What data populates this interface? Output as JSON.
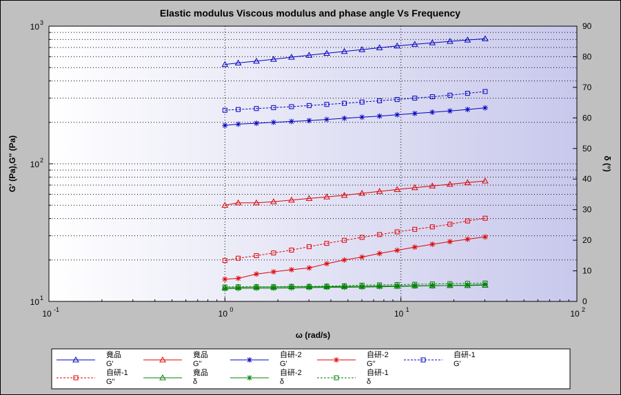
{
  "chart_data": {
    "type": "line",
    "title": "Elastic modulus Viscous modulus and phase angle Vs Frequency",
    "xlabel": "ω (rad/s)",
    "ylabel_left": "G' (Pa),G'' (Pa)",
    "ylabel_right": "δ (°)",
    "x_scale": "log",
    "y_left_scale": "log",
    "xlim": [
      0.1,
      100
    ],
    "ylim_left": [
      10,
      1000
    ],
    "ylim_right": [
      0,
      90
    ],
    "x_ticks": [
      {
        "base": "10",
        "exp": "-1"
      },
      {
        "base": "10",
        "exp": "0"
      },
      {
        "base": "10",
        "exp": "1"
      },
      {
        "base": "10",
        "exp": "2"
      }
    ],
    "y_left_ticks": [
      {
        "base": "10",
        "exp": "1"
      },
      {
        "base": "10",
        "exp": "2"
      },
      {
        "base": "10",
        "exp": "3"
      }
    ],
    "y_right_ticks": [
      "0",
      "10",
      "20",
      "30",
      "40",
      "50",
      "60",
      "70",
      "80",
      "90"
    ],
    "grid": true,
    "legend_position": "bottom",
    "x": [
      1.0,
      1.19,
      1.51,
      1.89,
      2.39,
      3.01,
      3.79,
      4.77,
      6.01,
      7.56,
      9.52,
      11.99,
      15.09,
      19.0,
      23.92,
      30.11
    ],
    "series": [
      {
        "name": "竟品",
        "sub": "G'",
        "axis": "left",
        "color": "#0000c0",
        "marker": "triangle",
        "dashed": false,
        "values": [
          527,
          540,
          557,
          575,
          595,
          615,
          635,
          655,
          675,
          697,
          718,
          738,
          757,
          775,
          793,
          810
        ]
      },
      {
        "name": "竟品",
        "sub": "G''",
        "axis": "left",
        "color": "#e00000",
        "marker": "triangle",
        "dashed": false,
        "values": [
          50,
          52,
          52,
          53,
          54.5,
          56,
          57.5,
          59,
          61,
          63,
          65,
          67,
          69,
          71,
          73,
          75
        ]
      },
      {
        "name": "自研-2",
        "sub": "G'",
        "axis": "left",
        "color": "#0000c0",
        "marker": "star",
        "dashed": false,
        "values": [
          190,
          194,
          197,
          200,
          203,
          206,
          210,
          214,
          218,
          222,
          227,
          232,
          237,
          242,
          248,
          255
        ]
      },
      {
        "name": "自研-2",
        "sub": "G''",
        "axis": "left",
        "color": "#e00000",
        "marker": "star",
        "dashed": false,
        "values": [
          14.5,
          14.7,
          15.8,
          16.4,
          17.0,
          17.5,
          18.8,
          20.0,
          21.0,
          22.3,
          23.5,
          24.8,
          26.0,
          27.2,
          28.3,
          29.4
        ]
      },
      {
        "name": "自研-1",
        "sub": "G'",
        "axis": "left",
        "color": "#0000c0",
        "marker": "square",
        "dashed": true,
        "values": [
          245,
          248,
          252,
          256,
          260,
          265,
          270,
          275,
          281,
          287,
          293,
          300,
          307,
          315,
          325,
          335
        ]
      },
      {
        "name": "自研-1",
        "sub": "G''",
        "axis": "left",
        "color": "#e00000",
        "marker": "square",
        "dashed": true,
        "values": [
          19.8,
          20.6,
          21.5,
          22.5,
          23.6,
          25.0,
          26.4,
          27.8,
          29.2,
          30.6,
          32.0,
          33.4,
          34.8,
          36.4,
          38.4,
          40.2
        ]
      },
      {
        "name": "竟品",
        "sub": "δ",
        "axis": "right",
        "color": "#008000",
        "marker": "triangle",
        "dashed": false,
        "values": [
          4.5,
          4.6,
          4.7,
          4.7,
          4.8,
          4.8,
          4.8,
          4.9,
          4.9,
          5.0,
          5.0,
          5.1,
          5.1,
          5.2,
          5.2,
          5.3
        ]
      },
      {
        "name": "自研-2",
        "sub": "δ",
        "axis": "right",
        "color": "#008000",
        "marker": "star",
        "dashed": false,
        "values": [
          4.1,
          4.2,
          4.3,
          4.3,
          4.4,
          4.5,
          4.6,
          4.6,
          4.7,
          4.8,
          4.9,
          5.0,
          5.1,
          5.2,
          5.3,
          5.5
        ]
      },
      {
        "name": "自研-1",
        "sub": "δ",
        "axis": "right",
        "color": "#008000",
        "marker": "square",
        "dashed": true,
        "values": [
          4.7,
          4.8,
          4.8,
          4.8,
          4.9,
          4.9,
          5.0,
          5.1,
          5.3,
          5.4,
          5.5,
          5.6,
          5.7,
          5.8,
          5.9,
          6.0
        ]
      }
    ]
  }
}
